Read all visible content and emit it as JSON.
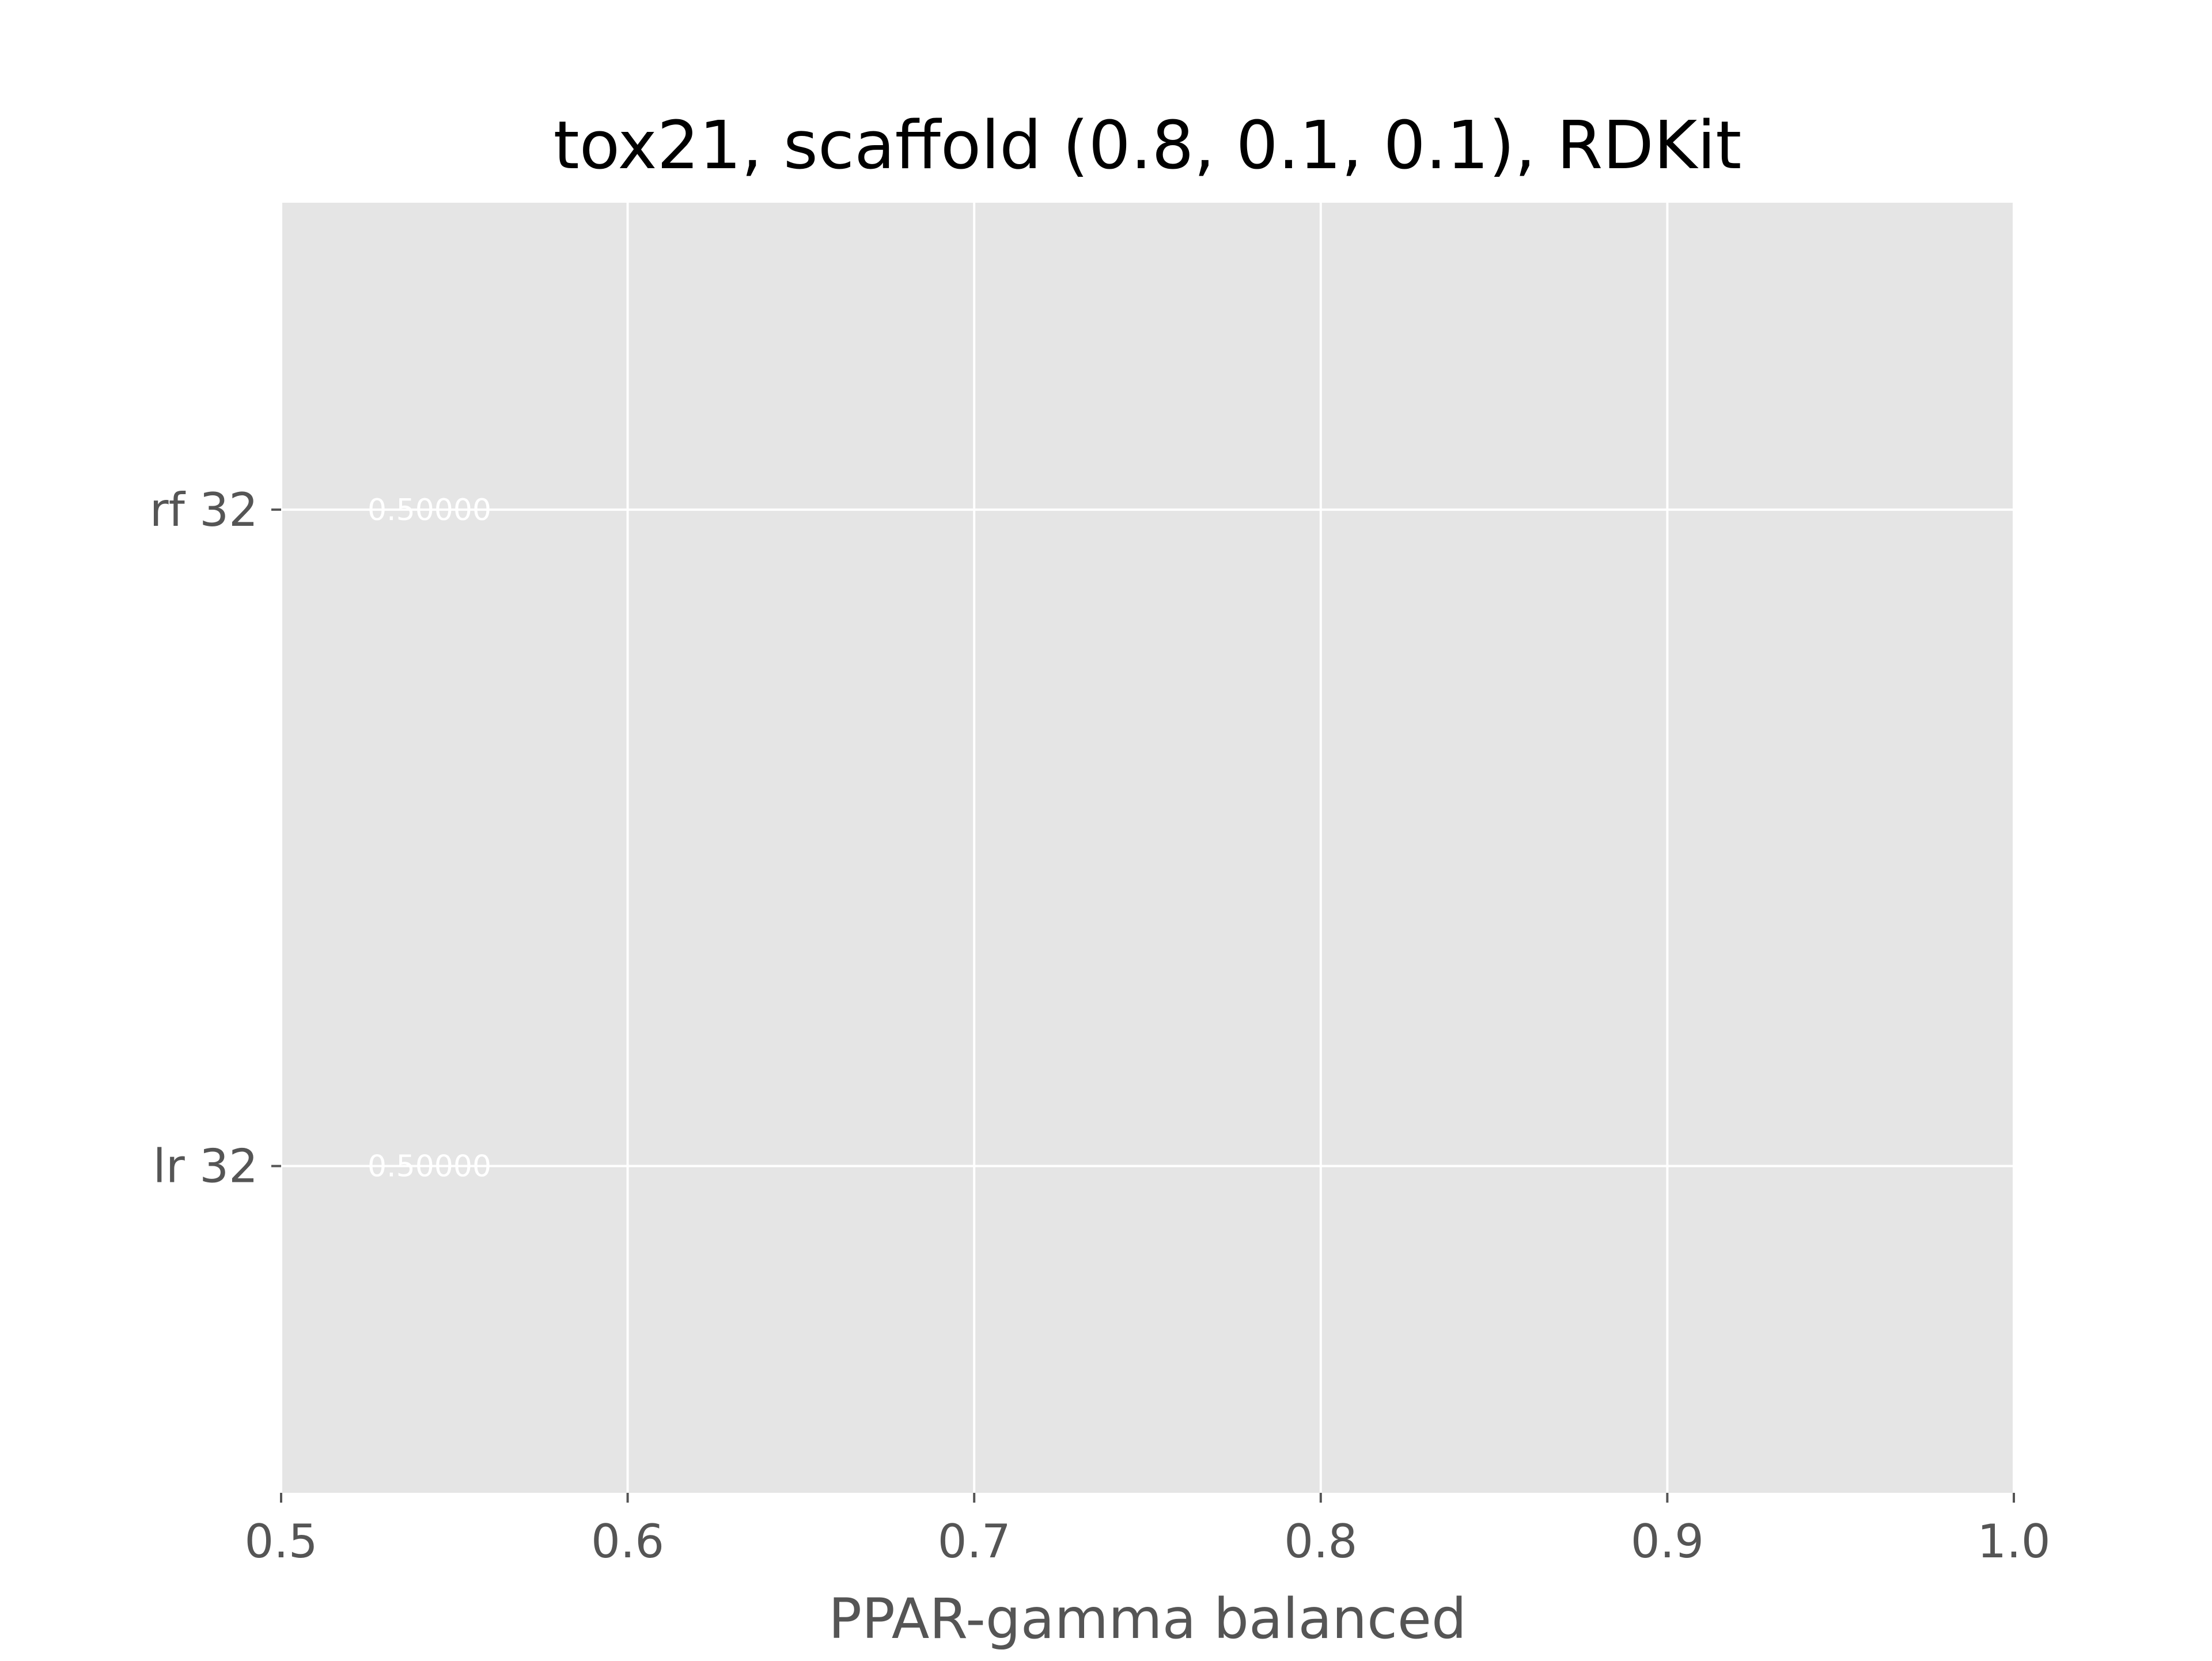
{
  "chart_data": {
    "type": "bar",
    "orientation": "horizontal",
    "title": "tox21, scaffold (0.8, 0.1, 0.1), RDKit",
    "xlabel": "PPAR-gamma balanced",
    "ylabel": "",
    "xlim": [
      0.5,
      1.0
    ],
    "xticks": [
      0.5,
      0.6,
      0.7,
      0.8,
      0.9,
      1.0
    ],
    "xtick_labels": [
      "0.5",
      "0.6",
      "0.7",
      "0.8",
      "0.9",
      "1.0"
    ],
    "categories": [
      "lr 32",
      "rf 32"
    ],
    "values": [
      0.5,
      0.5
    ],
    "value_labels": [
      "0.50000",
      "0.50000"
    ],
    "grid": true,
    "style": "ggplot",
    "colors": {
      "plot_background": "#e5e5e5",
      "grid": "#ffffff",
      "data_label": "#ffffff"
    }
  }
}
